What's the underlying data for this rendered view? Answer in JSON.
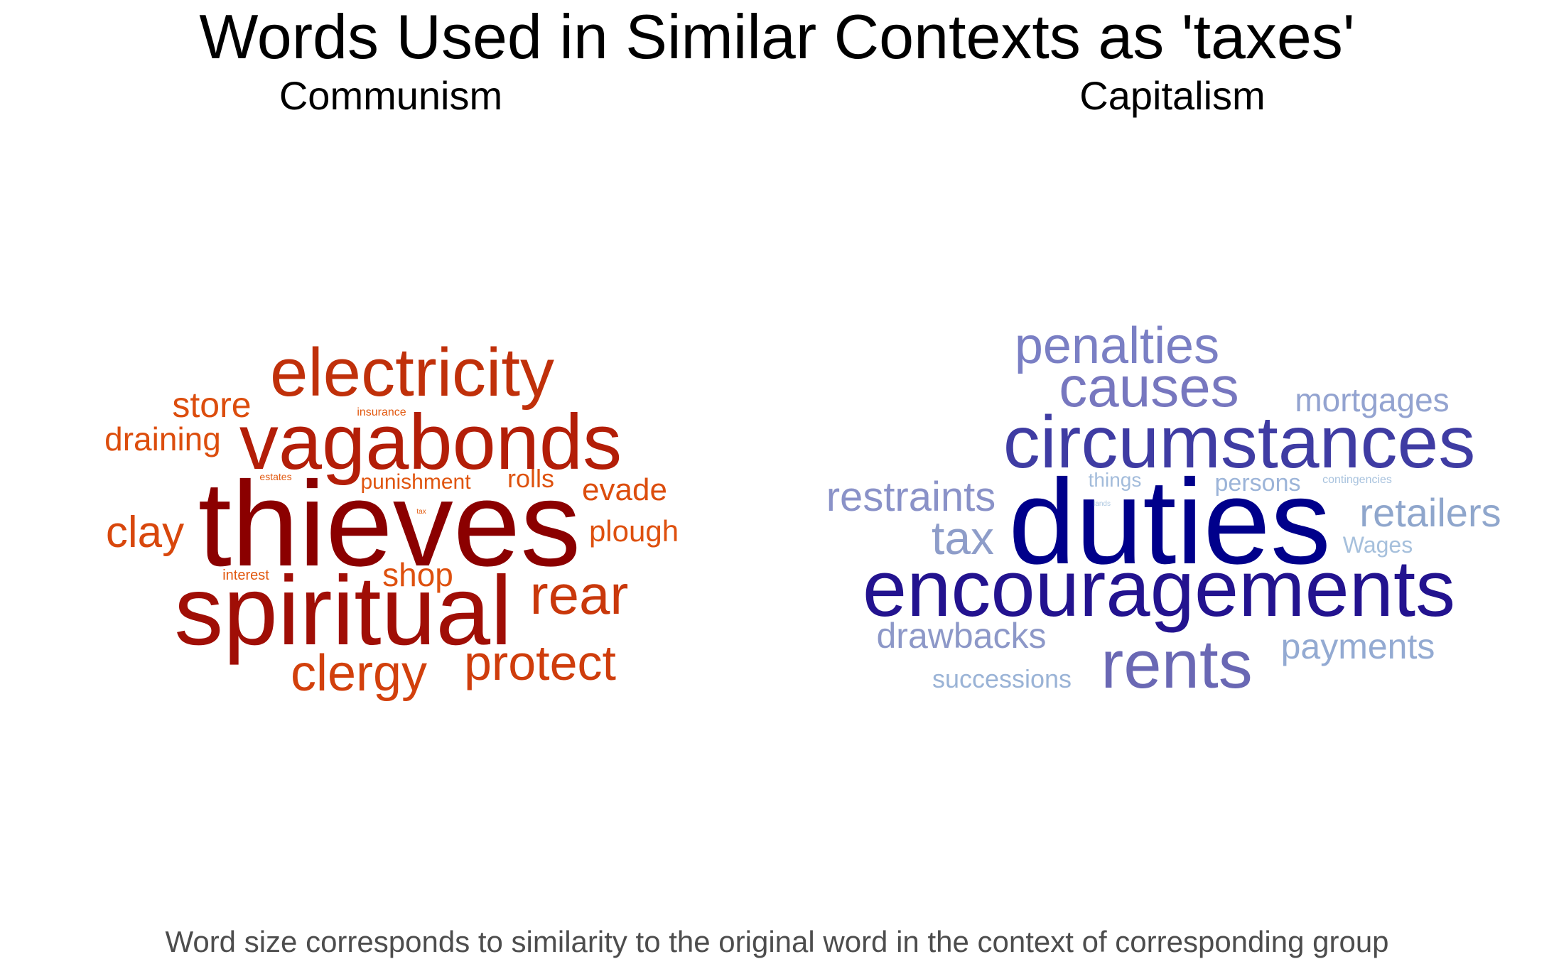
{
  "title": "Words Used in Similar Contexts as 'taxes'",
  "caption": "Word size corresponds to similarity to the original word in the context of corresponding group",
  "panels": [
    {
      "title": "Communism",
      "words": [
        {
          "text": "thieves",
          "color": "#8b0000"
        },
        {
          "text": "spiritual",
          "color": "#a00e06"
        },
        {
          "text": "vagabonds",
          "color": "#b31e08"
        },
        {
          "text": "electricity",
          "color": "#c0300a"
        },
        {
          "text": "rear",
          "color": "#c9380b"
        },
        {
          "text": "protect",
          "color": "#cf3d0c"
        },
        {
          "text": "clergy",
          "color": "#d2400c"
        },
        {
          "text": "clay",
          "color": "#d8470c"
        },
        {
          "text": "store",
          "color": "#dc4d0d"
        },
        {
          "text": "draining",
          "color": "#dc4d0d"
        },
        {
          "text": "evade",
          "color": "#dc4d0d"
        },
        {
          "text": "plough",
          "color": "#de500e"
        },
        {
          "text": "shop",
          "color": "#de500e"
        },
        {
          "text": "rolls",
          "color": "#de520e"
        },
        {
          "text": "punishment",
          "color": "#e0550f"
        },
        {
          "text": "interest",
          "color": "#e25910"
        },
        {
          "text": "insurance",
          "color": "#e25910"
        },
        {
          "text": "estates",
          "color": "#e25910"
        },
        {
          "text": "tax",
          "color": "#e35b10"
        }
      ]
    },
    {
      "title": "Capitalism",
      "words": [
        {
          "text": "duties",
          "color": "#00008b"
        },
        {
          "text": "encouragements",
          "color": "#23138f"
        },
        {
          "text": "circumstances",
          "color": "#3f3ca3"
        },
        {
          "text": "rents",
          "color": "#6a68b4"
        },
        {
          "text": "causes",
          "color": "#7777bf"
        },
        {
          "text": "penalties",
          "color": "#7a7fc4"
        },
        {
          "text": "tax",
          "color": "#8e9dc9"
        },
        {
          "text": "restraints",
          "color": "#8a92c8"
        },
        {
          "text": "retailers",
          "color": "#8fa6cc"
        },
        {
          "text": "mortgages",
          "color": "#93a3d0"
        },
        {
          "text": "payments",
          "color": "#93aad2"
        },
        {
          "text": "drawbacks",
          "color": "#8d98c8"
        },
        {
          "text": "successions",
          "color": "#9ab3d6"
        },
        {
          "text": "persons",
          "color": "#9cb4d8"
        },
        {
          "text": "things",
          "color": "#a3bcdb"
        },
        {
          "text": "Wages",
          "color": "#a6c0dc"
        },
        {
          "text": "contingencies",
          "color": "#a9c3de"
        },
        {
          "text": "lands",
          "color": "#adc7e0"
        }
      ]
    }
  ]
}
